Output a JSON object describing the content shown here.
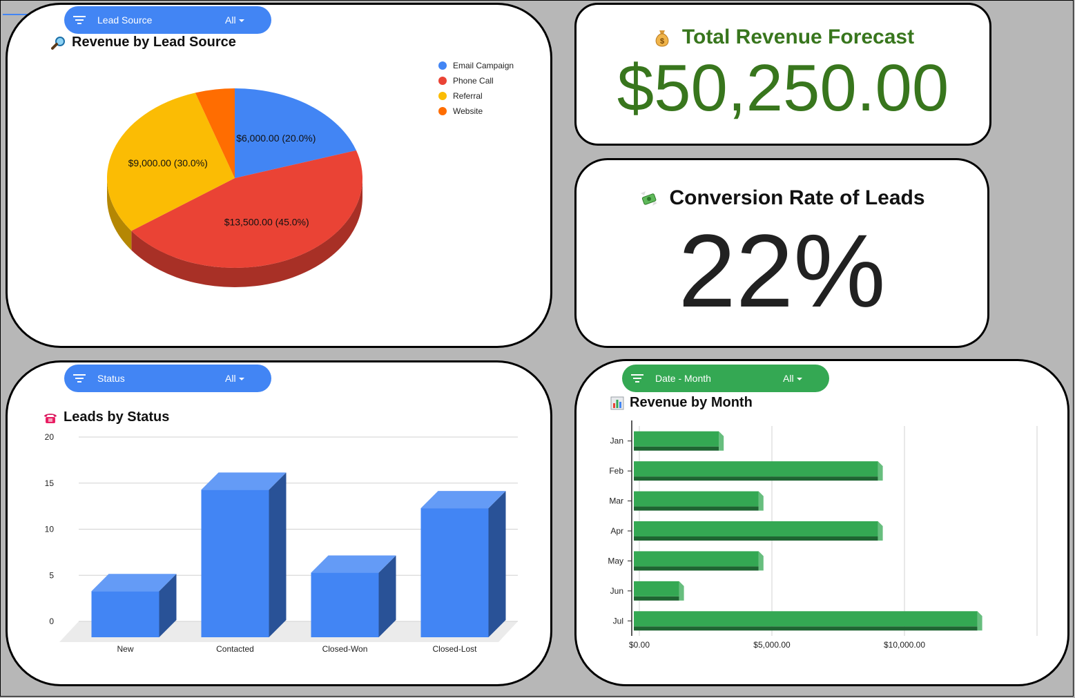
{
  "panels": {
    "pie": {
      "filter": {
        "label": "Lead Source",
        "value": "All",
        "color": "#4285f4"
      },
      "title": "Revenue by Lead Source"
    },
    "revenue": {
      "title": "Total Revenue Forecast",
      "value": "$50,250.00",
      "color": "#38761d"
    },
    "conversion": {
      "title": "Conversion Rate of Leads",
      "value": "22%"
    },
    "status": {
      "filter": {
        "label": "Status",
        "value": "All",
        "color": "#4285f4"
      },
      "title": "Leads by Status"
    },
    "month": {
      "filter": {
        "label": "Date - Month",
        "value": "All",
        "color": "#34a853"
      },
      "title": "Revenue by Month"
    }
  },
  "chart_data": [
    {
      "type": "pie",
      "title": "Revenue by Lead Source",
      "categories": [
        "Email Campaign",
        "Phone Call",
        "Referral",
        "Website"
      ],
      "values": [
        6000,
        13500,
        9000,
        1500
      ],
      "data_labels": [
        "$6,000.00 (20.0%)",
        "$13,500.00 (45.0%)",
        "$9,000.00 (30.0%)",
        ""
      ],
      "colors": [
        "#4285f4",
        "#ea4335",
        "#fbbc04",
        "#ff6d01"
      ],
      "legend": "right",
      "style": "3d"
    },
    {
      "type": "bar",
      "title": "Leads by Status",
      "categories": [
        "New",
        "Contacted",
        "Closed-Won",
        "Closed-Lost"
      ],
      "values": [
        5,
        16,
        7,
        14
      ],
      "ylim": [
        0,
        20
      ],
      "yticks": [
        "0",
        "5",
        "10",
        "15",
        "20"
      ],
      "color": "#4285f4",
      "grid": true,
      "style": "3d"
    },
    {
      "type": "bar",
      "orientation": "horizontal",
      "title": "Revenue by Month",
      "categories": [
        "Jan",
        "Feb",
        "Mar",
        "Apr",
        "May",
        "Jun",
        "Jul"
      ],
      "values": [
        3000,
        9000,
        4500,
        9000,
        4500,
        1500,
        12750
      ],
      "xlim": [
        0,
        15000
      ],
      "xticks": [
        "$0.00",
        "$5,000.00",
        "$10,000.00"
      ],
      "color": "#34a853",
      "grid": true,
      "style": "3d"
    }
  ]
}
